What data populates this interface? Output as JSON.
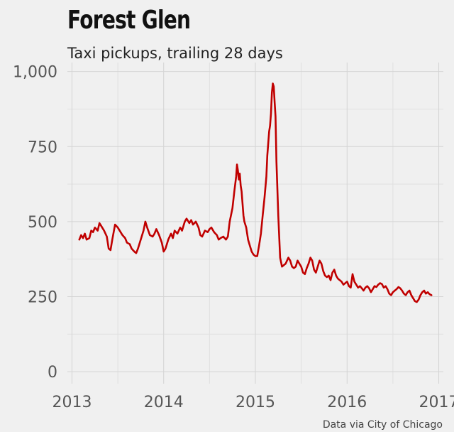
{
  "header": {
    "title": "Forest Glen",
    "subtitle": "Taxi pickups, trailing 28 days",
    "caption": "Data via City of Chicago"
  },
  "chart_data": {
    "type": "line",
    "title": "Forest Glen",
    "subtitle": "Taxi pickups, trailing 28 days",
    "xlabel": "",
    "ylabel": "",
    "xlim": [
      2012.95,
      2017.05
    ],
    "ylim": [
      -40,
      1030
    ],
    "x_ticks": [
      2013,
      2014,
      2015,
      2016,
      2017
    ],
    "x_tick_labels": [
      "2013",
      "2014",
      "2015",
      "2016",
      "2017"
    ],
    "y_ticks": [
      0,
      250,
      500,
      750,
      1000
    ],
    "y_tick_labels": [
      "0",
      "250",
      "500",
      "750",
      "1,000"
    ],
    "grid": true,
    "legend": "none",
    "line_color": "#c00000",
    "series": [
      {
        "x": [
          2013.08,
          2013.1,
          2013.12,
          2013.14,
          2013.16,
          2013.19,
          2013.21,
          2013.23,
          2013.25,
          2013.28,
          2013.3,
          2013.32,
          2013.35,
          2013.38,
          2013.4,
          2013.42,
          2013.44,
          2013.47,
          2013.5,
          2013.52,
          2013.55,
          2013.58,
          2013.6,
          2013.63,
          2013.65,
          2013.68,
          2013.7,
          2013.72,
          2013.75,
          2013.78,
          2013.8,
          2013.82,
          2013.85,
          2013.88,
          2013.9,
          2013.92,
          2013.95,
          2013.98,
          2014.0,
          2014.02,
          2014.05,
          2014.08,
          2014.1,
          2014.12,
          2014.15,
          2014.18,
          2014.2,
          2014.23,
          2014.25,
          2014.28,
          2014.3,
          2014.32,
          2014.35,
          2014.38,
          2014.4,
          2014.42,
          2014.45,
          2014.48,
          2014.5,
          2014.52,
          2014.55,
          2014.58,
          2014.6,
          2014.62,
          2014.65,
          2014.68,
          2014.7,
          2014.72,
          2014.75,
          2014.77,
          2014.79,
          2014.8,
          2014.81,
          2014.82,
          2014.83,
          2014.84,
          2014.85,
          2014.86,
          2014.87,
          2014.88,
          2014.9,
          2014.92,
          2014.94,
          2014.96,
          2014.98,
          2015.0,
          2015.02,
          2015.04,
          2015.06,
          2015.08,
          2015.1,
          2015.12,
          2015.13,
          2015.14,
          2015.15,
          2015.16,
          2015.17,
          2015.18,
          2015.19,
          2015.2,
          2015.21,
          2015.22,
          2015.23,
          2015.25,
          2015.27,
          2015.29,
          2015.31,
          2015.33,
          2015.36,
          2015.38,
          2015.4,
          2015.42,
          2015.44,
          2015.46,
          2015.48,
          2015.5,
          2015.52,
          2015.54,
          2015.56,
          2015.58,
          2015.6,
          2015.62,
          2015.64,
          2015.66,
          2015.68,
          2015.7,
          2015.72,
          2015.74,
          2015.76,
          2015.78,
          2015.8,
          2015.82,
          2015.84,
          2015.86,
          2015.88,
          2015.9,
          2015.92,
          2015.94,
          2015.96,
          2015.98,
          2016.0,
          2016.02,
          2016.04,
          2016.06,
          2016.08,
          2016.1,
          2016.12,
          2016.14,
          2016.16,
          2016.18,
          2016.2,
          2016.22,
          2016.24,
          2016.26,
          2016.28,
          2016.3,
          2016.32,
          2016.34,
          2016.36,
          2016.38,
          2016.4,
          2016.42,
          2016.44,
          2016.46,
          2016.48,
          2016.5,
          2016.52,
          2016.54,
          2016.56,
          2016.58,
          2016.6,
          2016.62,
          2016.64,
          2016.66,
          2016.68,
          2016.7,
          2016.72,
          2016.74,
          2016.76,
          2016.78,
          2016.8,
          2016.82,
          2016.84,
          2016.86,
          2016.88,
          2016.9,
          2016.92
        ],
        "values": [
          440,
          455,
          445,
          460,
          440,
          445,
          470,
          465,
          480,
          470,
          495,
          485,
          470,
          450,
          410,
          405,
          440,
          490,
          480,
          470,
          455,
          445,
          430,
          425,
          410,
          400,
          395,
          410,
          440,
          470,
          500,
          480,
          455,
          450,
          460,
          475,
          455,
          430,
          400,
          410,
          440,
          460,
          445,
          470,
          460,
          480,
          470,
          500,
          510,
          495,
          505,
          490,
          500,
          480,
          455,
          450,
          470,
          465,
          475,
          480,
          465,
          455,
          440,
          445,
          450,
          440,
          450,
          500,
          545,
          600,
          650,
          690,
          670,
          640,
          660,
          620,
          600,
          560,
          520,
          500,
          480,
          440,
          420,
          400,
          390,
          385,
          385,
          420,
          460,
          520,
          580,
          650,
          720,
          760,
          800,
          820,
          860,
          930,
          960,
          950,
          900,
          850,
          700,
          520,
          380,
          350,
          355,
          360,
          380,
          370,
          350,
          345,
          350,
          370,
          360,
          350,
          330,
          325,
          345,
          360,
          380,
          370,
          340,
          330,
          350,
          370,
          360,
          335,
          320,
          315,
          320,
          305,
          330,
          340,
          320,
          310,
          305,
          300,
          290,
          295,
          300,
          285,
          280,
          325,
          300,
          290,
          280,
          285,
          278,
          270,
          280,
          285,
          278,
          265,
          275,
          285,
          282,
          290,
          295,
          292,
          280,
          285,
          275,
          260,
          255,
          265,
          270,
          275,
          282,
          278,
          270,
          260,
          255,
          265,
          270,
          255,
          245,
          235,
          232,
          240,
          255,
          265,
          270,
          260,
          265,
          258,
          255
        ]
      }
    ]
  }
}
